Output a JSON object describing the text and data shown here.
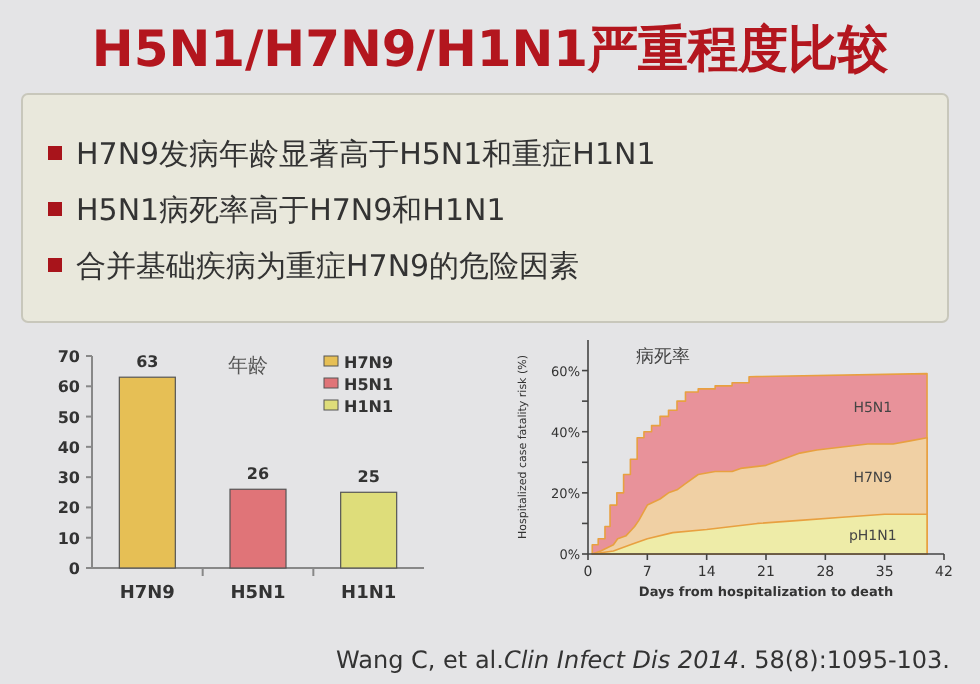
{
  "chart_data": [
    {
      "type": "other",
      "title": "H5N1/H7N9/H1N1严重程度比较",
      "annotations": [
        "H7N9发病年龄显著高于H5N1和重症H1N1",
        "H5N1病死率高于H7N9和H1N1",
        "合并基础疾病为重症H7N9的危险因素",
        "Wang C, et al.*Clin Infect Dis 2014*. 58(8):1095-103."
      ]
    },
    {
      "type": "bar",
      "title": "年龄",
      "categories": [
        "H7N9",
        "H5N1",
        "H1N1"
      ],
      "series": [
        {
          "name": "H7N9",
          "color": "#e6bf55",
          "values": [
            63,
            null,
            null
          ]
        },
        {
          "name": "H5N1",
          "color": "#e07478",
          "values": [
            null,
            26,
            null
          ]
        },
        {
          "name": "H1N1",
          "color": "#dedd7a",
          "values": [
            null,
            null,
            25
          ]
        }
      ],
      "ylim": [
        0,
        70
      ],
      "yticks": [
        0,
        10,
        20,
        30,
        40,
        50,
        60,
        70
      ],
      "data_labels": true,
      "legend": "top right"
    },
    {
      "type": "area",
      "title": "病死率",
      "xlabel": "Days from hospitalization to death",
      "ylabel": "Hospitalized case fatality risk (%)",
      "xlim": [
        0,
        42
      ],
      "xticks": [
        0,
        7,
        14,
        21,
        28,
        35,
        42
      ],
      "ylim": [
        0,
        70
      ],
      "yticks": [
        {
          "value": 0,
          "label": "0%"
        },
        {
          "value": 10,
          "label": null
        },
        {
          "value": 20,
          "label": "20%"
        },
        {
          "value": 30,
          "label": null
        },
        {
          "value": 40,
          "label": "40%"
        },
        {
          "value": 50,
          "label": null
        },
        {
          "value": 60,
          "label": "60%"
        }
      ],
      "series": [
        {
          "name": "H5N1",
          "color": "#e8929a",
          "x": [
            0.5,
            0.5,
            1.2,
            1.2,
            2,
            2,
            2.6,
            2.6,
            3.4,
            3.4,
            4.2,
            4.2,
            5,
            5,
            5.8,
            5.8,
            6.6,
            6.6,
            7.5,
            7.5,
            8.5,
            8.5,
            9.5,
            9.5,
            10.5,
            10.5,
            11.5,
            11.5,
            13,
            13,
            15,
            15,
            17,
            17,
            19,
            19,
            40
          ],
          "values": [
            0,
            3,
            3,
            5,
            5,
            9,
            9,
            16,
            16,
            20,
            20,
            26,
            26,
            31,
            31,
            38,
            38,
            40,
            40,
            42,
            42,
            45,
            45,
            47,
            47,
            50,
            50,
            53,
            53,
            54,
            54,
            55,
            55,
            56,
            56,
            58,
            59
          ]
        },
        {
          "name": "H7N9",
          "color": "#f0d0a4",
          "x": [
            0.5,
            1.5,
            3,
            3.5,
            4.5,
            5.5,
            6,
            7,
            8.5,
            9.5,
            10.5,
            11.5,
            13,
            15,
            17,
            18,
            21,
            23,
            25,
            27,
            30,
            33,
            36,
            38,
            40
          ],
          "values": [
            0,
            1,
            3,
            5,
            6,
            9,
            11,
            16,
            18,
            20,
            21,
            23,
            26,
            27,
            27,
            28,
            29,
            31,
            33,
            34,
            35,
            36,
            36,
            37,
            38
          ]
        },
        {
          "name": "pH1N1",
          "color": "#eeeca8",
          "x": [
            0.5,
            3,
            5,
            7,
            10,
            14,
            20,
            25,
            30,
            35,
            40
          ],
          "values": [
            0,
            1,
            3,
            5,
            7,
            8,
            10,
            11,
            12,
            13,
            13
          ]
        }
      ]
    }
  ]
}
